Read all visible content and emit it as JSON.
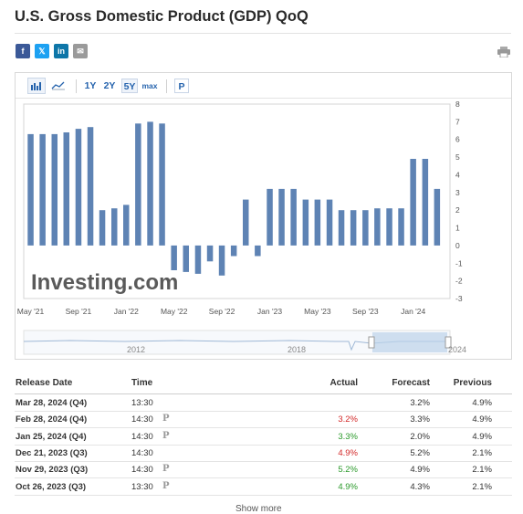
{
  "page": {
    "title": "U.S. Gross Domestic Product (GDP) QoQ"
  },
  "share": {
    "facebook": "f",
    "twitter": "𝕏",
    "linkedin": "in",
    "email": "✉",
    "facebook_color": "#3b5998",
    "twitter_color": "#1da1f2",
    "linkedin_color": "#0e76a8",
    "email_color": "#9a9a9a"
  },
  "toolbar": {
    "bar_icon": "bar-chart-icon",
    "line_icon": "line-chart-icon",
    "range_1y": "1Y",
    "range_2y": "2Y",
    "range_5y": "5Y",
    "range_max": "max",
    "preliminary": "P",
    "selected_range": "5Y"
  },
  "chart_data": {
    "type": "bar",
    "title": "",
    "watermark": "Investing.com",
    "bar_color": "#5e83b4",
    "values": [
      6.3,
      6.3,
      6.3,
      6.4,
      6.6,
      6.7,
      2.0,
      2.1,
      2.3,
      6.9,
      7.0,
      6.9,
      -1.4,
      -1.5,
      -1.6,
      -0.9,
      -1.7,
      -0.6,
      2.6,
      -0.6,
      3.2,
      3.2,
      3.2,
      2.6,
      2.6,
      2.6,
      2.0,
      2.0,
      2.0,
      2.1,
      2.1,
      2.1,
      4.9,
      4.9,
      3.2
    ],
    "x_tick_labels": [
      "May '21",
      "Sep '21",
      "Jan '22",
      "May '22",
      "Sep '22",
      "Jan '23",
      "May '23",
      "Sep '23",
      "Jan '24"
    ],
    "ylim": [
      -3,
      8
    ],
    "y_ticks": [
      "8",
      "7",
      "6",
      "5",
      "4",
      "3",
      "2",
      "1",
      "0",
      "-1",
      "-2",
      "-3"
    ],
    "grid": false,
    "navigator_labels": [
      "2012",
      "2018",
      "2024"
    ]
  },
  "table": {
    "headers": {
      "release_date": "Release Date",
      "time": "Time",
      "actual": "Actual",
      "forecast": "Forecast",
      "previous": "Previous"
    },
    "rows": [
      {
        "date": "Mar 28, 2024 (Q4)",
        "time": "13:30",
        "prelim": "",
        "actual": "",
        "actual_status": "",
        "forecast": "3.2%",
        "previous": "4.9%"
      },
      {
        "date": "Feb 28, 2024 (Q4)",
        "time": "14:30",
        "prelim": "P",
        "actual": "3.2%",
        "actual_status": "red",
        "forecast": "3.3%",
        "previous": "4.9%"
      },
      {
        "date": "Jan 25, 2024 (Q4)",
        "time": "14:30",
        "prelim": "P",
        "actual": "3.3%",
        "actual_status": "green",
        "forecast": "2.0%",
        "previous": "4.9%"
      },
      {
        "date": "Dec 21, 2023 (Q3)",
        "time": "14:30",
        "prelim": "",
        "actual": "4.9%",
        "actual_status": "red",
        "forecast": "5.2%",
        "previous": "2.1%"
      },
      {
        "date": "Nov 29, 2023 (Q3)",
        "time": "14:30",
        "prelim": "P",
        "actual": "5.2%",
        "actual_status": "green",
        "forecast": "4.9%",
        "previous": "2.1%"
      },
      {
        "date": "Oct 26, 2023 (Q3)",
        "time": "13:30",
        "prelim": "P",
        "actual": "4.9%",
        "actual_status": "green",
        "forecast": "4.3%",
        "previous": "2.1%"
      }
    ]
  },
  "show_more": "Show more"
}
